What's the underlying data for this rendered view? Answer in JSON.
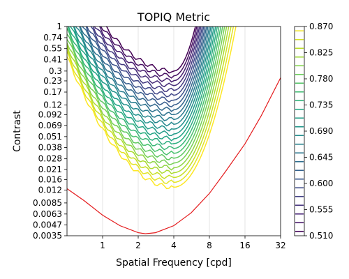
{
  "chart_data": {
    "type": "contour",
    "title": "TOPIQ Metric",
    "xlabel": "Spatial Frequency [cpd]",
    "ylabel": "Contrast",
    "xscale": "log2",
    "yscale": "log",
    "xlim": [
      0.5,
      32
    ],
    "ylim": [
      0.0035,
      1
    ],
    "xticks": [
      {
        "v": 1,
        "label": "1"
      },
      {
        "v": 2,
        "label": "2"
      },
      {
        "v": 4,
        "label": "4"
      },
      {
        "v": 8,
        "label": "8"
      },
      {
        "v": 16,
        "label": "16"
      },
      {
        "v": 32,
        "label": "32"
      }
    ],
    "yticks": [
      {
        "v": 1,
        "label": "1"
      },
      {
        "v": 0.74,
        "label": "0.74"
      },
      {
        "v": 0.55,
        "label": "0.55"
      },
      {
        "v": 0.41,
        "label": "0.41"
      },
      {
        "v": 0.3,
        "label": "0.3"
      },
      {
        "v": 0.23,
        "label": "0.23"
      },
      {
        "v": 0.17,
        "label": "0.17"
      },
      {
        "v": 0.12,
        "label": "0.12"
      },
      {
        "v": 0.092,
        "label": "0.092"
      },
      {
        "v": 0.069,
        "label": "0.069"
      },
      {
        "v": 0.051,
        "label": "0.051"
      },
      {
        "v": 0.038,
        "label": "0.038"
      },
      {
        "v": 0.028,
        "label": "0.028"
      },
      {
        "v": 0.021,
        "label": "0.021"
      },
      {
        "v": 0.016,
        "label": "0.016"
      },
      {
        "v": 0.012,
        "label": "0.012"
      },
      {
        "v": 0.0085,
        "label": "0.0085"
      },
      {
        "v": 0.0063,
        "label": "0.0063"
      },
      {
        "v": 0.0047,
        "label": "0.0047"
      },
      {
        "v": 0.0035,
        "label": "0.0035"
      }
    ],
    "grid": "vertical-only",
    "colorbar": {
      "colormap": "viridis",
      "range": [
        0.51,
        0.87
      ],
      "tick_labels": [
        "0.510",
        "0.555",
        "0.600",
        "0.645",
        "0.690",
        "0.735",
        "0.780",
        "0.825",
        "0.870"
      ]
    },
    "contour_levels": {
      "min": 0.51,
      "max": 0.87,
      "step": 0.015
    },
    "contour_shape": {
      "min_freq": 4.0,
      "outermost_level_contrast_at_min": 0.013,
      "innermost_level_contrast_at_min": 0.3
    },
    "threshold_curve": {
      "color": "#e41a1c",
      "x": [
        0.5,
        0.7,
        1.0,
        1.4,
        2.0,
        2.3,
        2.8,
        4,
        5.6,
        8,
        11,
        16,
        22,
        32
      ],
      "y": [
        0.0125,
        0.009,
        0.0061,
        0.0046,
        0.0038,
        0.0037,
        0.0038,
        0.0046,
        0.0065,
        0.011,
        0.02,
        0.042,
        0.09,
        0.25
      ]
    }
  }
}
